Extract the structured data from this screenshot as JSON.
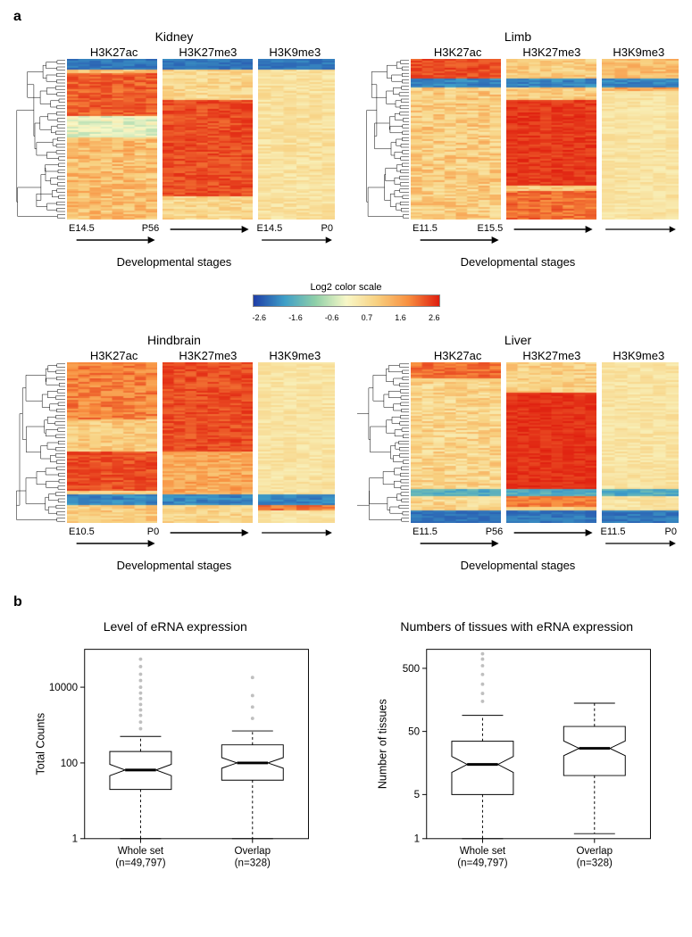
{
  "panelA": {
    "label": "a",
    "colorbar": {
      "title": "Log2 color scale",
      "ticks": [
        "-2.6",
        "-1.6",
        "-0.6",
        "0.7",
        "1.6",
        "2.6"
      ],
      "colors": [
        "#2040a8",
        "#3f9fc8",
        "#90d0a8",
        "#f8f8c8",
        "#f8d080",
        "#f89040",
        "#e02010"
      ]
    },
    "marks": [
      "H3K27ac",
      "H3K27me3",
      "H3K9me3"
    ],
    "dev_label": "Developmental stages",
    "tissues": [
      {
        "name": "Kidney",
        "stage_labels": [
          [
            "E14.5",
            "P56"
          ],
          [
            "",
            ""
          ],
          [
            "E14.5",
            "P0"
          ]
        ],
        "heatmap_seed": 11,
        "pattern": "kidney"
      },
      {
        "name": "Limb",
        "stage_labels": [
          [
            "E11.5",
            "E15.5"
          ],
          [
            "",
            ""
          ],
          [
            "",
            ""
          ]
        ],
        "heatmap_seed": 22,
        "pattern": "limb"
      },
      {
        "name": "Hindbrain",
        "stage_labels": [
          [
            "E10.5",
            "P0"
          ],
          [
            "",
            ""
          ],
          [
            "",
            ""
          ]
        ],
        "heatmap_seed": 33,
        "pattern": "hindbrain"
      },
      {
        "name": "Liver",
        "stage_labels": [
          [
            "E11.5",
            "P56"
          ],
          [
            "",
            ""
          ],
          [
            "E11.5",
            "P0"
          ]
        ],
        "heatmap_seed": 44,
        "pattern": "liver"
      }
    ]
  },
  "panelB": {
    "label": "b",
    "plots": [
      {
        "title": "Level of eRNA expression",
        "ylabel": "Total Counts",
        "yticks": [
          1,
          100,
          10000
        ],
        "ytick_labels": [
          "1",
          "100",
          "10000"
        ],
        "ylog_min": 0,
        "ylog_max": 5,
        "categories": [
          "Whole set\n(n=49,797)",
          "Overlap\n(n=328)"
        ],
        "boxes": [
          {
            "q1": 20,
            "median": 65,
            "q3": 200,
            "whisker_lo": 1,
            "whisker_hi": 500,
            "outliers": [
              800,
              1200,
              1800,
              2500,
              3500,
              5000,
              7000,
              10000,
              15000,
              22000,
              35000,
              55000
            ]
          },
          {
            "q1": 35,
            "median": 100,
            "q3": 300,
            "whisker_lo": 1,
            "whisker_hi": 700,
            "outliers": [
              1500,
              3000,
              6000,
              18000
            ]
          }
        ]
      },
      {
        "title": "Numbers of tissues with eRNA expression",
        "ylabel": "Number of tissues",
        "yticks": [
          1,
          5,
          50,
          500
        ],
        "ytick_labels": [
          "1",
          "5",
          "50",
          "500"
        ],
        "ylog_min": 0,
        "ylog_max": 3,
        "categories": [
          "Whole set\n(n=49,797)",
          "Overlap\n(n=328)"
        ],
        "boxes": [
          {
            "q1": 5,
            "median": 15,
            "q3": 35,
            "whisker_lo": 1,
            "whisker_hi": 90,
            "outliers": [
              150,
              200,
              280,
              400,
              550,
              700,
              850
            ]
          },
          {
            "q1": 10,
            "median": 27,
            "q3": 60,
            "whisker_lo": 1.2,
            "whisker_hi": 140,
            "outliers": []
          }
        ]
      }
    ]
  },
  "style": {
    "box_stroke": "#000000",
    "outlier_color": "#bfbfbf",
    "median_width": 3,
    "box_width": 0.55,
    "notch": true
  }
}
